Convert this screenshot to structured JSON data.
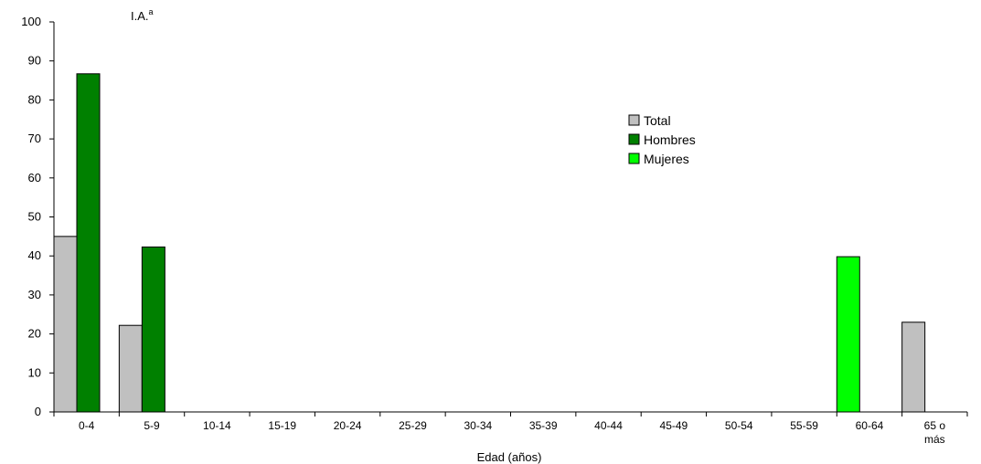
{
  "chart_data": {
    "type": "bar",
    "ylabel": "I.A.",
    "ylabel_superscript": "a",
    "xlabel": "Edad (años)",
    "ylim": [
      0,
      100
    ],
    "yticks": [
      0,
      10,
      20,
      30,
      40,
      50,
      60,
      70,
      80,
      90,
      100
    ],
    "categories": [
      "0-4",
      "5-9",
      "10-14",
      "15-19",
      "20-24",
      "25-29",
      "30-34",
      "35-39",
      "40-44",
      "45-49",
      "50-54",
      "55-59",
      "60-64",
      "65 o más"
    ],
    "category_lines": [
      [
        "0-4"
      ],
      [
        "5-9"
      ],
      [
        "10-14"
      ],
      [
        "15-19"
      ],
      [
        "20-24"
      ],
      [
        "25-29"
      ],
      [
        "30-34"
      ],
      [
        "35-39"
      ],
      [
        "40-44"
      ],
      [
        "45-49"
      ],
      [
        "50-54"
      ],
      [
        "55-59"
      ],
      [
        "60-64"
      ],
      [
        "65 o",
        "más"
      ]
    ],
    "series": [
      {
        "name": "Total",
        "color": "#c0c0c0",
        "values": [
          45,
          22.2,
          0,
          0,
          0,
          0,
          0,
          0,
          0,
          0,
          0,
          0,
          0,
          23
        ]
      },
      {
        "name": "Hombres",
        "color": "#008000",
        "values": [
          86.7,
          42.3,
          0,
          0,
          0,
          0,
          0,
          0,
          0,
          0,
          0,
          0,
          0,
          0
        ]
      },
      {
        "name": "Mujeres",
        "color": "#00ff00",
        "values": [
          0,
          0,
          0,
          0,
          0,
          0,
          0,
          0,
          0,
          0,
          0,
          0,
          39.8,
          0
        ]
      }
    ],
    "legend_position": "right"
  }
}
